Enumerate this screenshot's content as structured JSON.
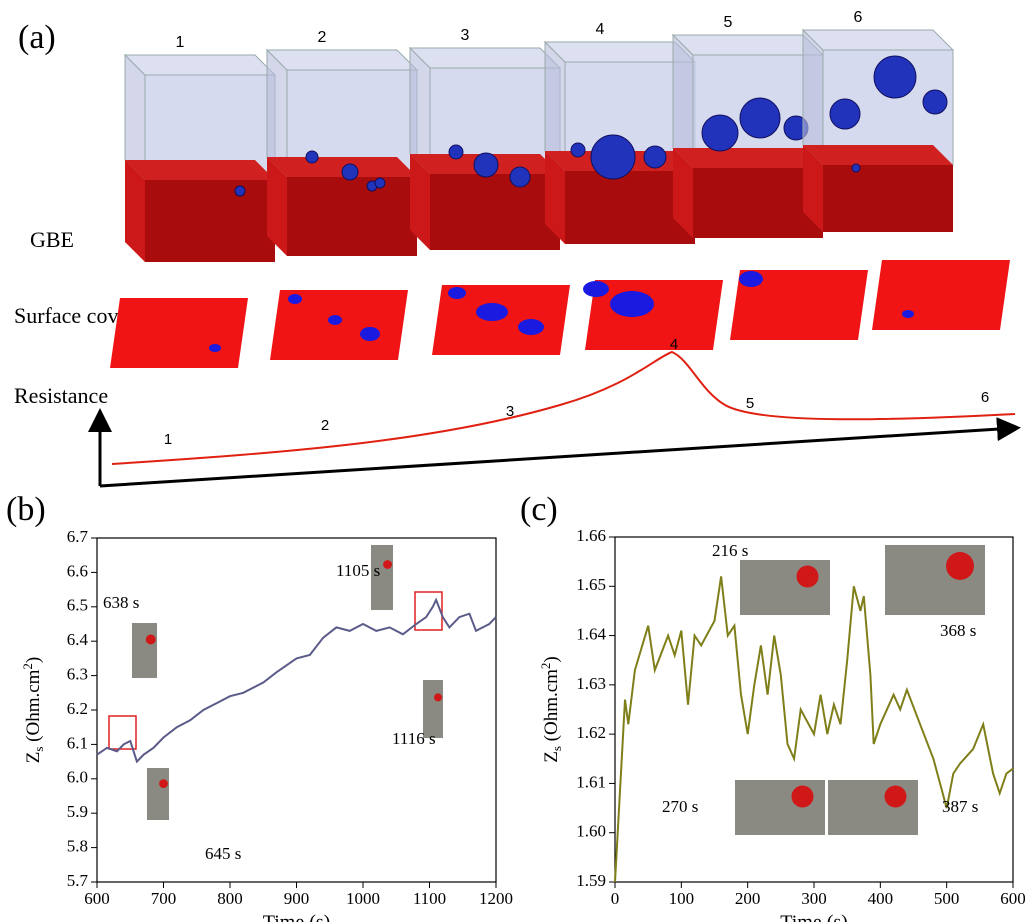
{
  "panel_a": {
    "label": "(a)",
    "steps": [
      "1",
      "2",
      "3",
      "4",
      "5",
      "6"
    ],
    "row_labels": [
      "GBE",
      "Surface coverage",
      "Resistance"
    ],
    "curve_labels": [
      "1",
      "2",
      "3",
      "4",
      "5",
      "6"
    ]
  },
  "chart_data": [
    {
      "type": "line",
      "panel_label": "(b)",
      "x_label": "Time (s)",
      "y_label": {
        "main": "Z",
        "sub": "s",
        "rest": " (Ohm.cm",
        "sup": "2",
        "end": ")"
      },
      "color": "#5b5b8a",
      "x": [
        600,
        615,
        630,
        640,
        650,
        660,
        670,
        685,
        700,
        720,
        740,
        760,
        780,
        800,
        820,
        850,
        870,
        900,
        920,
        940,
        960,
        980,
        1000,
        1020,
        1040,
        1060,
        1080,
        1095,
        1105,
        1110,
        1120,
        1130,
        1145,
        1160,
        1170,
        1180,
        1190,
        1200
      ],
      "values": [
        6.07,
        6.09,
        6.08,
        6.1,
        6.11,
        6.05,
        6.07,
        6.09,
        6.12,
        6.15,
        6.17,
        6.2,
        6.22,
        6.24,
        6.25,
        6.28,
        6.31,
        6.35,
        6.36,
        6.41,
        6.44,
        6.43,
        6.45,
        6.43,
        6.44,
        6.42,
        6.45,
        6.47,
        6.5,
        6.52,
        6.47,
        6.44,
        6.47,
        6.48,
        6.43,
        6.44,
        6.45,
        6.47
      ],
      "xlim": [
        600,
        1200
      ],
      "xticks": [
        600,
        700,
        800,
        900,
        1000,
        1100,
        1200
      ],
      "ylim": [
        5.7,
        6.7
      ],
      "yticks": [
        5.7,
        5.8,
        5.9,
        {
          "value": 6,
          "label": "6.0"
        },
        6.1,
        6.2,
        6.3,
        6.4,
        6.5,
        6.6,
        6.7
      ],
      "annotations": [
        "638 s",
        "645 s",
        "1105 s",
        "1116 s"
      ]
    },
    {
      "type": "line",
      "panel_label": "(c)",
      "x_label": "Time (s)",
      "y_label": {
        "main": "Z",
        "sub": "s",
        "rest": " (Ohm.cm",
        "sup": "2",
        "end": ")"
      },
      "color": "#7f7f1a",
      "x": [
        0,
        15,
        20,
        30,
        50,
        60,
        80,
        90,
        100,
        110,
        120,
        130,
        150,
        160,
        170,
        180,
        190,
        200,
        210,
        220,
        230,
        240,
        250,
        260,
        270,
        280,
        300,
        310,
        320,
        330,
        340,
        350,
        360,
        370,
        375,
        385,
        390,
        400,
        420,
        430,
        440,
        460,
        480,
        500,
        510,
        520,
        540,
        555,
        570,
        580,
        590,
        600
      ],
      "values": [
        1.59,
        1.627,
        1.622,
        1.633,
        1.642,
        1.633,
        1.64,
        1.636,
        1.641,
        1.626,
        1.64,
        1.638,
        1.643,
        1.652,
        1.64,
        1.642,
        1.628,
        1.62,
        1.63,
        1.638,
        1.628,
        1.64,
        1.632,
        1.618,
        1.615,
        1.625,
        1.62,
        1.628,
        1.62,
        1.626,
        1.622,
        1.635,
        1.65,
        1.645,
        1.648,
        1.632,
        1.618,
        1.622,
        1.628,
        1.625,
        1.629,
        1.622,
        1.615,
        1.605,
        1.612,
        1.614,
        1.617,
        1.622,
        1.612,
        1.608,
        1.612,
        1.613
      ],
      "xlim": [
        0,
        600
      ],
      "xticks": [
        0,
        100,
        200,
        300,
        400,
        500,
        600
      ],
      "ylim": [
        1.59,
        1.66
      ],
      "yticks": [
        1.59,
        {
          "value": 1.6,
          "label": "1.60"
        },
        1.61,
        1.62,
        1.63,
        1.64,
        1.65,
        1.66
      ],
      "annotations": [
        "216 s",
        "270 s",
        "368 s",
        "387 s"
      ]
    }
  ]
}
